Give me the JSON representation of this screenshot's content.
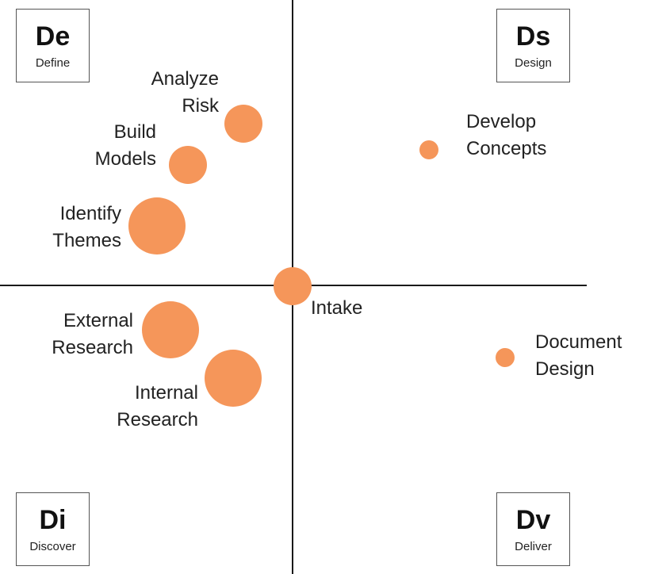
{
  "accent": "#F5965A",
  "quadrants": {
    "define": {
      "abbr": "De",
      "label": "Define"
    },
    "design": {
      "abbr": "Ds",
      "label": "Design"
    },
    "discover": {
      "abbr": "Di",
      "label": "Discover"
    },
    "deliver": {
      "abbr": "Dv",
      "label": "Deliver"
    }
  },
  "activities": {
    "analyze_risk": {
      "line1": "Analyze",
      "line2": "Risk"
    },
    "build_models": {
      "line1": "Build",
      "line2": "Models"
    },
    "identify_themes": {
      "line1": "Identify",
      "line2": "Themes"
    },
    "develop_concepts": {
      "line1": "Develop",
      "line2": "Concepts"
    },
    "intake": {
      "line1": "Intake"
    },
    "external_research": {
      "line1": "External",
      "line2": "Research"
    },
    "internal_research": {
      "line1": "Internal",
      "line2": "Research"
    },
    "document_design": {
      "line1": "Document",
      "line2": "Design"
    }
  }
}
